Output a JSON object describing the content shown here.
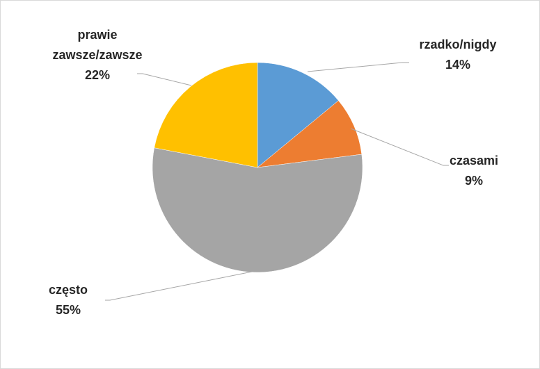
{
  "chart_data": {
    "type": "pie",
    "title": "",
    "categories": [
      "rzadko/nigdy",
      "czasami",
      "często",
      "prawie zawsze/zawsze"
    ],
    "values": [
      14,
      9,
      55,
      22
    ],
    "value_labels": [
      "14%",
      "9%",
      "55%",
      "22%"
    ],
    "label_lines": [
      [
        "rzadko/nigdy"
      ],
      [
        "czasami"
      ],
      [
        "często"
      ],
      [
        "prawie",
        "zawsze/zawsze"
      ]
    ],
    "colors": [
      "#5b9bd5",
      "#ed7d31",
      "#a5a5a5",
      "#ffc000"
    ],
    "start_angle_deg": 0,
    "direction": "clockwise",
    "legend": "none",
    "data_labels": "outside with leader lines"
  }
}
